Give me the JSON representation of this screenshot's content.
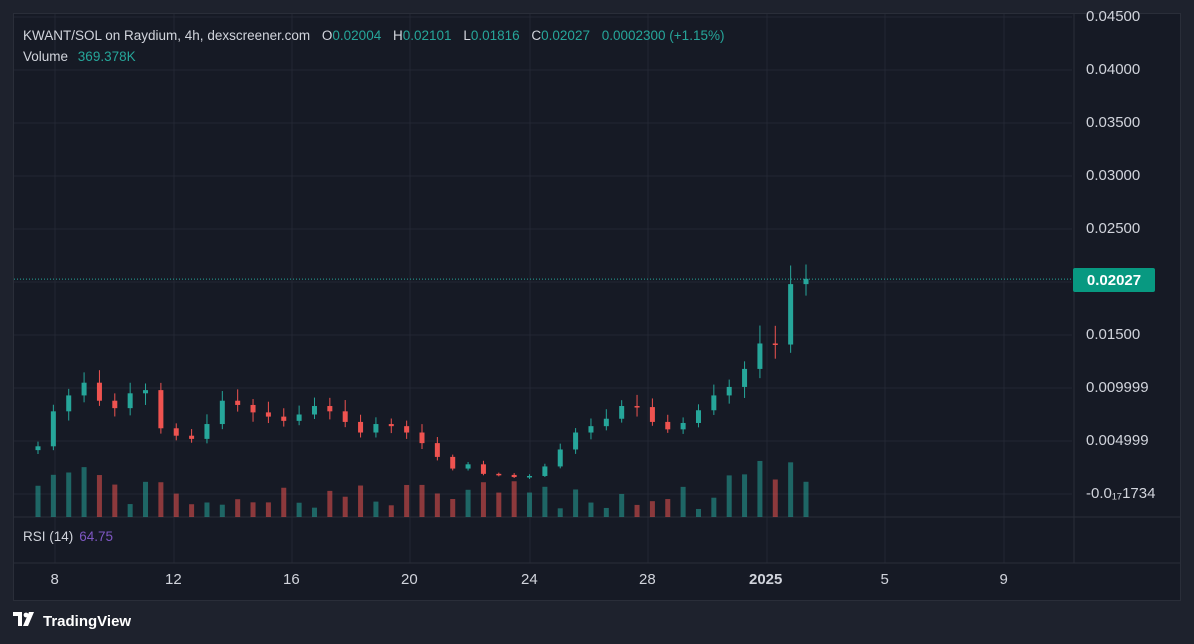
{
  "legend": {
    "symbol": "KWANT/SOL on Raydium, 4h, dexscreener.com",
    "o_key": "O",
    "o_val": "0.02004",
    "h_key": "H",
    "h_val": "0.02101",
    "l_key": "L",
    "l_val": "0.01816",
    "c_key": "C",
    "c_val": "0.02027",
    "change": "0.0002300 (+1.15%)",
    "volume_key": "Volume",
    "volume_val": "369.378K"
  },
  "rsi": {
    "label": "RSI (14)",
    "value": "64.75"
  },
  "last_price": "0.02027",
  "brand": "TradingView",
  "colors": {
    "up": "#26a69a",
    "down": "#ef5350",
    "rsi": "#7e57c2",
    "price_tag": "#089981",
    "background": "#161a25"
  },
  "chart_data": {
    "type": "candlestick",
    "title": "KWANT/SOL on Raydium, 4h, dexscreener.com",
    "y_ticks": [
      "0.04500",
      "0.04000",
      "0.03500",
      "0.03000",
      "0.02500",
      "0.01500",
      "0.009999",
      "0.004999",
      "-0.0₁₇1734"
    ],
    "x_ticks": [
      "8",
      "12",
      "16",
      "20",
      "24",
      "28",
      "2025",
      "5",
      "9"
    ],
    "ylim": [
      0,
      0.045
    ],
    "grid": true,
    "series": [
      {
        "name": "Price",
        "ohlc_close_approx": [
          0.0045,
          0.0078,
          0.0093,
          0.0105,
          0.0088,
          0.0081,
          0.0095,
          0.0098,
          0.0062,
          0.0055,
          0.0052,
          0.0066,
          0.0088,
          0.0084,
          0.0077,
          0.0073,
          0.0069,
          0.0075,
          0.0083,
          0.0078,
          0.0068,
          0.0058,
          0.0066,
          0.0064,
          0.0058,
          0.0048,
          0.0035,
          0.0024,
          0.0028,
          0.0019,
          0.0018,
          0.0016,
          0.0017,
          0.0026,
          0.0042,
          0.0058,
          0.0064,
          0.0071,
          0.0083,
          0.0082,
          0.0068,
          0.0061,
          0.0067,
          0.0079,
          0.0093,
          0.0101,
          0.0118,
          0.0142,
          0.0141,
          0.0198,
          0.0203
        ]
      },
      {
        "name": "Volume",
        "relative": true
      }
    ]
  }
}
